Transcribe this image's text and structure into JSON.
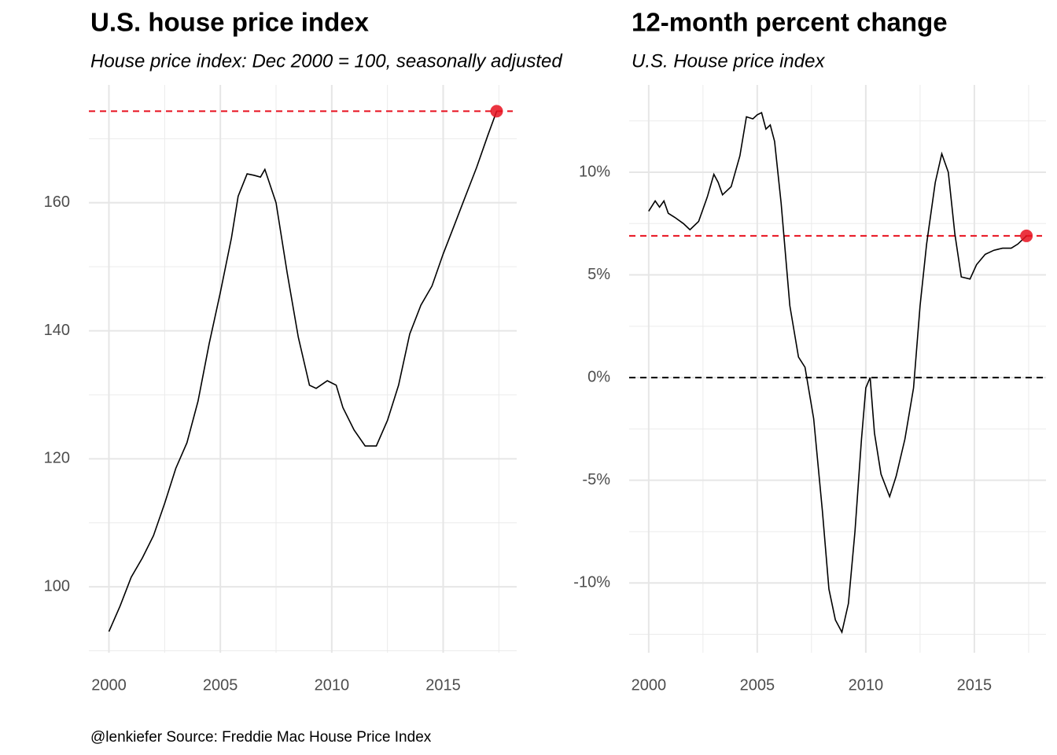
{
  "caption": "@lenkiefer Source: Freddie Mac House Price Index",
  "chart_data": [
    {
      "type": "line",
      "title": "U.S. house price index",
      "subtitle": "House price index: Dec 2000 = 100, seasonally adjusted",
      "x": [
        2000.0,
        2000.5,
        2001.0,
        2001.5,
        2002.0,
        2002.5,
        2003.0,
        2003.5,
        2004.0,
        2004.5,
        2005.0,
        2005.5,
        2005.8,
        2006.2,
        2006.5,
        2006.8,
        2007.0,
        2007.5,
        2008.0,
        2008.5,
        2009.0,
        2009.3,
        2009.8,
        2010.2,
        2010.5,
        2011.0,
        2011.5,
        2012.0,
        2012.5,
        2013.0,
        2013.5,
        2014.0,
        2014.5,
        2015.0,
        2015.5,
        2016.0,
        2016.5,
        2017.0,
        2017.4
      ],
      "series": [
        {
          "color": "#000000",
          "values": [
            93,
            97,
            101.5,
            104.5,
            108,
            113,
            118.5,
            122.5,
            129,
            138,
            146,
            154.5,
            161,
            164.5,
            164.3,
            164,
            165.2,
            160,
            149,
            139,
            131.5,
            131,
            132.2,
            131.5,
            128,
            124.5,
            122,
            122,
            126,
            131.5,
            139.5,
            144,
            147,
            152,
            156.5,
            161,
            165.5,
            170.5,
            174.3
          ]
        }
      ],
      "xlim": [
        1999.1,
        2018.3
      ],
      "xticks": [
        2000,
        2005,
        2010,
        2015
      ],
      "ylim": [
        89.7,
        178.4
      ],
      "yticks": [
        100,
        120,
        140,
        160
      ],
      "grid": true,
      "highlight_last": true,
      "highlight_color": "#e8101e"
    },
    {
      "type": "line",
      "title": "12-month percent change",
      "subtitle": "U.S. House price index",
      "x": [
        2000.0,
        2000.3,
        2000.5,
        2000.7,
        2000.9,
        2001.2,
        2001.6,
        2001.9,
        2002.3,
        2002.7,
        2003.0,
        2003.2,
        2003.4,
        2003.8,
        2004.2,
        2004.5,
        2004.8,
        2005.0,
        2005.2,
        2005.4,
        2005.6,
        2005.8,
        2006.1,
        2006.5,
        2006.9,
        2007.2,
        2007.6,
        2008.0,
        2008.3,
        2008.6,
        2008.9,
        2009.2,
        2009.5,
        2009.8,
        2010.0,
        2010.2,
        2010.4,
        2010.7,
        2011.1,
        2011.4,
        2011.8,
        2012.2,
        2012.5,
        2012.8,
        2013.2,
        2013.5,
        2013.8,
        2014.1,
        2014.4,
        2014.8,
        2015.1,
        2015.5,
        2015.9,
        2016.3,
        2016.7,
        2017.0,
        2017.4
      ],
      "series": [
        {
          "color": "#000000",
          "values": [
            8.1,
            8.6,
            8.3,
            8.6,
            8.0,
            7.8,
            7.5,
            7.2,
            7.6,
            8.8,
            9.9,
            9.5,
            8.9,
            9.3,
            10.8,
            12.7,
            12.6,
            12.8,
            12.9,
            12.1,
            12.3,
            11.5,
            8.5,
            3.5,
            1.0,
            0.5,
            -2.0,
            -6.5,
            -10.3,
            -11.8,
            -12.4,
            -11.0,
            -7.5,
            -3.0,
            -0.5,
            0.0,
            -2.7,
            -4.7,
            -5.8,
            -4.8,
            -3.0,
            -0.5,
            3.5,
            6.5,
            9.5,
            10.9,
            10.0,
            7.0,
            4.9,
            4.8,
            5.5,
            6.0,
            6.2,
            6.3,
            6.3,
            6.5,
            6.9
          ]
        }
      ],
      "xlim": [
        1999.1,
        2018.3
      ],
      "xticks": [
        2000,
        2005,
        2010,
        2015
      ],
      "ylim": [
        -13.4,
        14.25
      ],
      "yticks": [
        {
          "value": -10,
          "label": "-10%"
        },
        {
          "value": -5,
          "label": "-5%"
        },
        {
          "value": 0,
          "label": "0%"
        },
        {
          "value": 5,
          "label": "5%"
        },
        {
          "value": 10,
          "label": "10%"
        }
      ],
      "grid": true,
      "hline": 0,
      "highlight_last": true,
      "highlight_color": "#e8101e"
    }
  ]
}
